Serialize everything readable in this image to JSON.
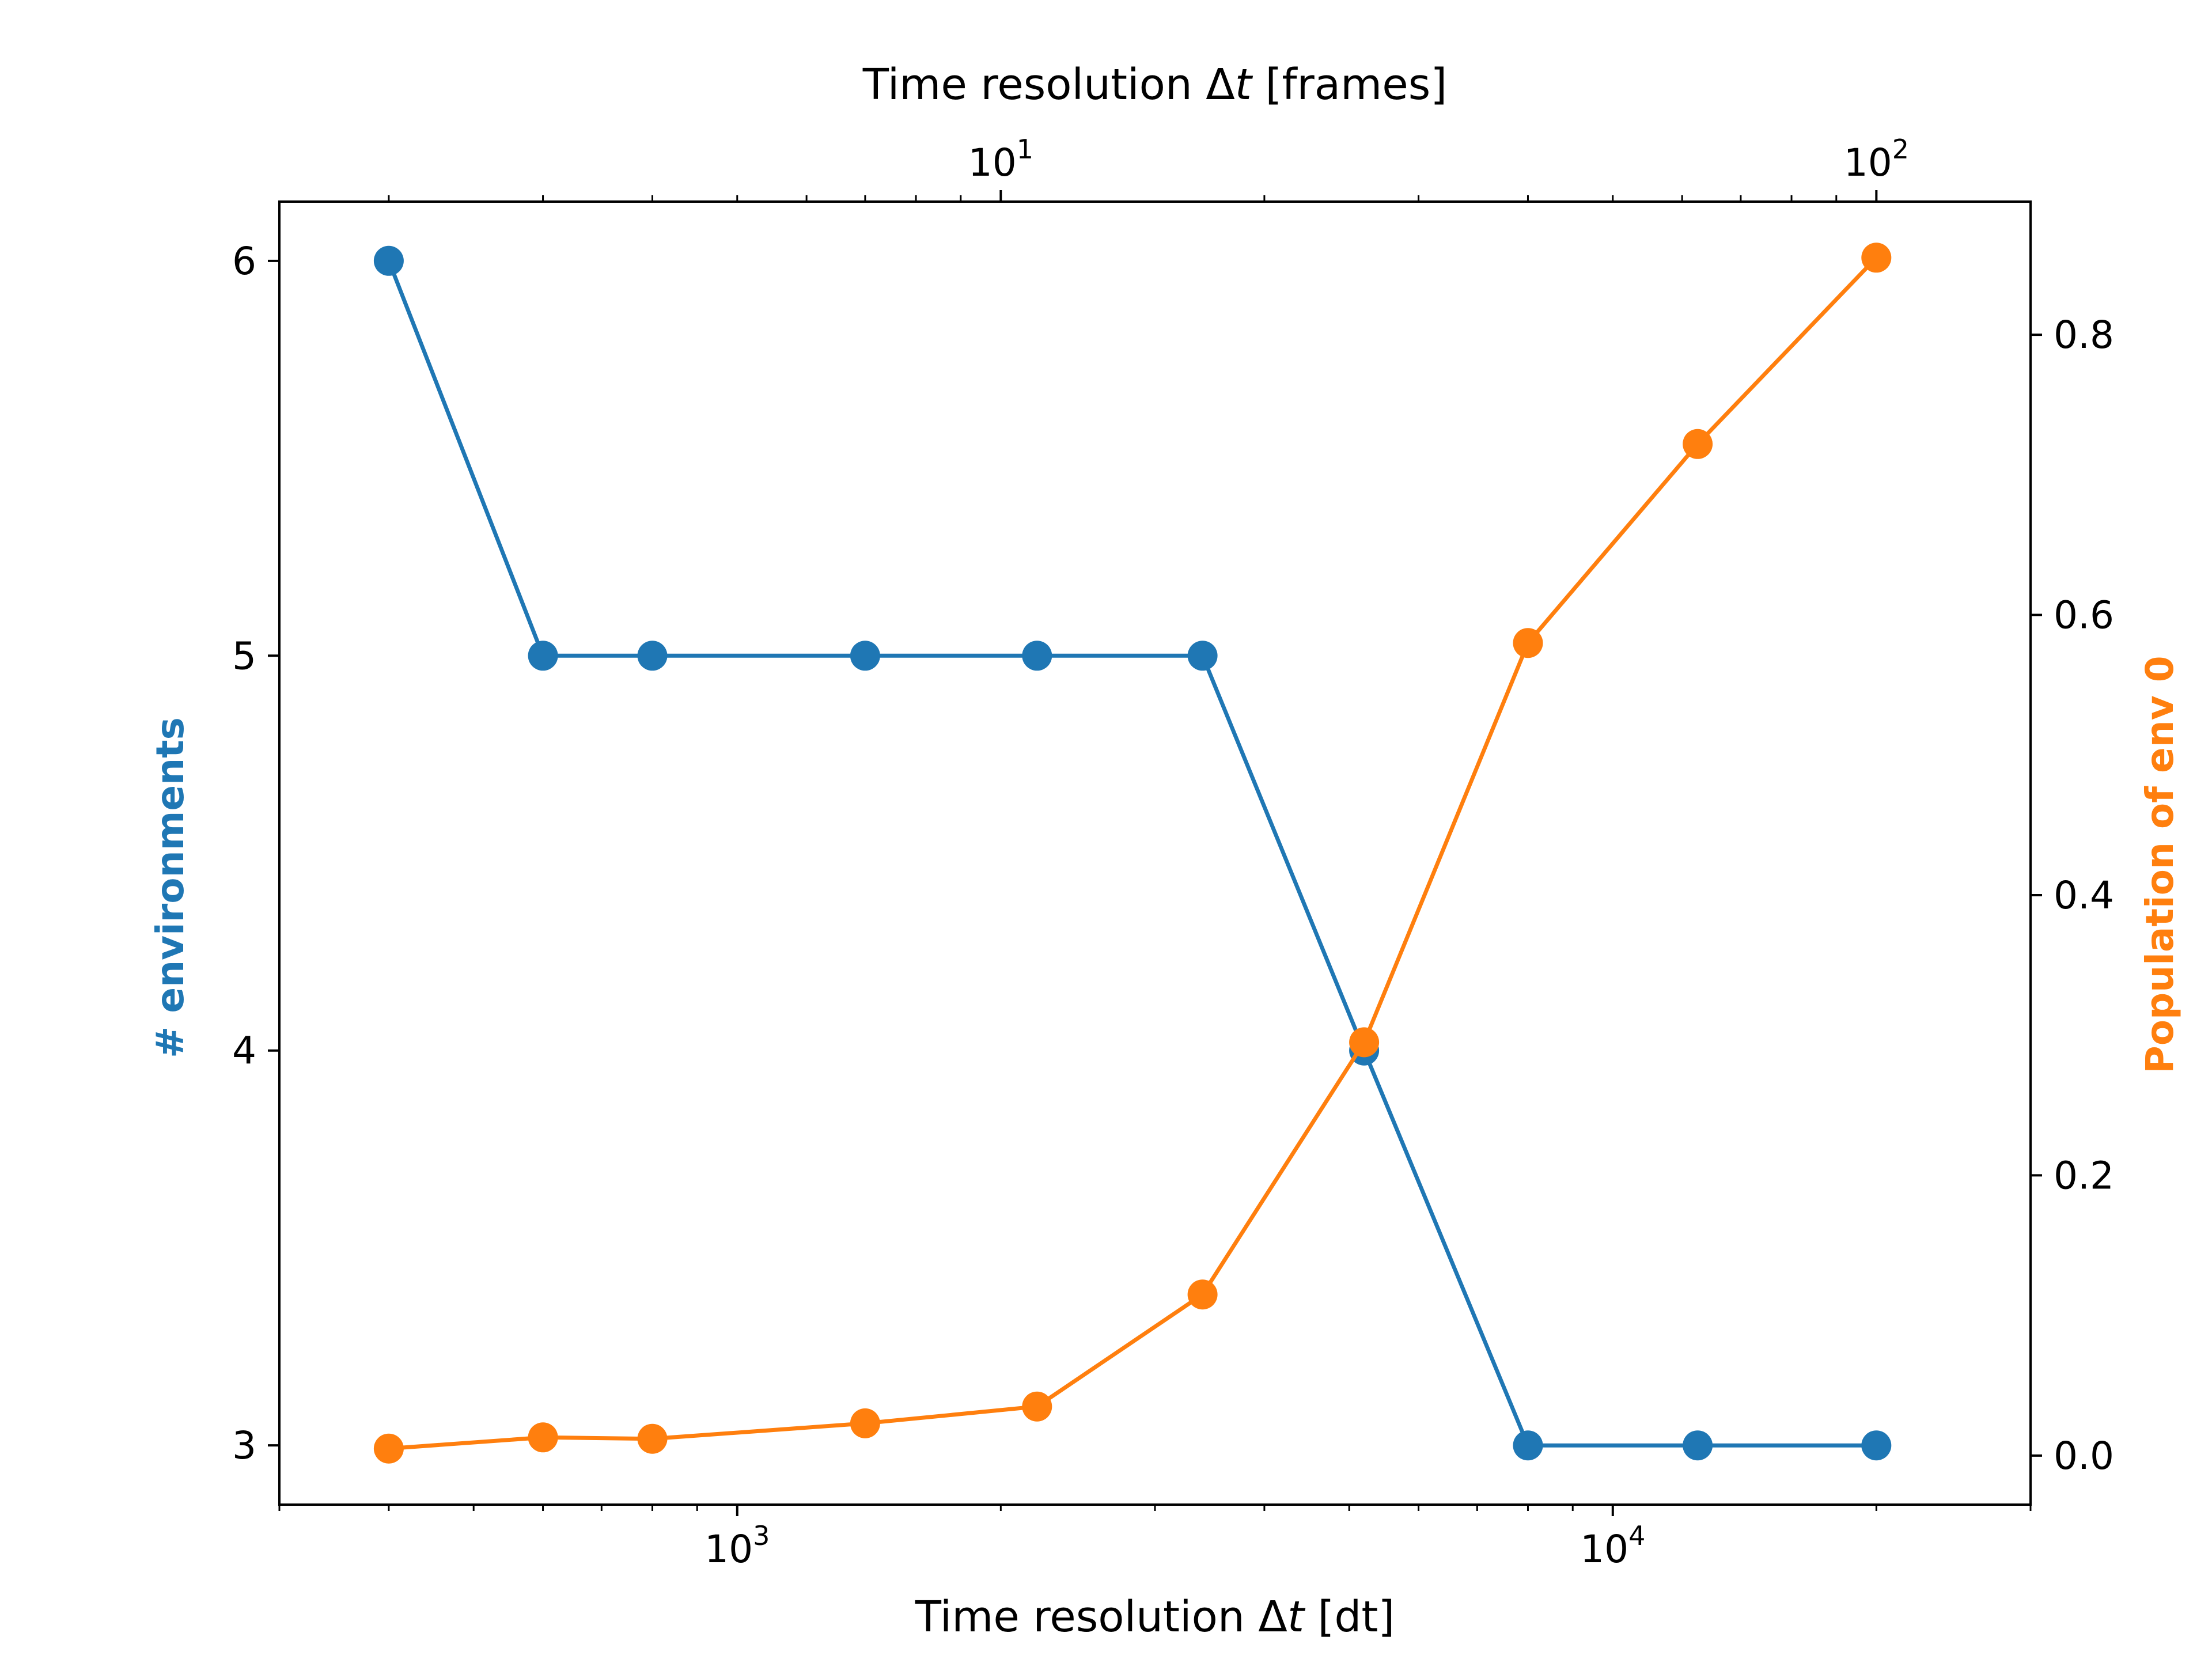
{
  "chart_data": {
    "type": "line",
    "x_scale": "log",
    "x": [
      400,
      600,
      800,
      1400,
      2200,
      3400,
      5200,
      8000,
      12500,
      20000
    ],
    "xlim": [
      300,
      30000
    ],
    "xlabel": "Time resolution Δt [dt]",
    "xlabel_parts": {
      "pre": "Time resolution Δ",
      "italic": "t",
      "post": " [dt]"
    },
    "xticks": [
      {
        "value": 1000,
        "base": "10",
        "exp": "3"
      },
      {
        "value": 10000,
        "base": "10",
        "exp": "4"
      }
    ],
    "top_axis": {
      "xlabel": "Time resolution Δt [frames]",
      "xlabel_parts": {
        "pre": "Time resolution Δ",
        "italic": "t",
        "post": " [frames]"
      },
      "scale": "log",
      "xticks": [
        {
          "value": 10,
          "base": "10",
          "exp": "1"
        },
        {
          "value": 100,
          "base": "10",
          "exp": "2"
        }
      ]
    },
    "left_axis": {
      "ylabel": "# environments",
      "color": "#1f77b4",
      "ylim": [
        2.85,
        6.15
      ],
      "yticks": [
        "3",
        "4",
        "5",
        "6"
      ]
    },
    "right_axis": {
      "ylabel": "Population of env 0",
      "color": "#ff7f0e",
      "ylim": [
        -0.035,
        0.895
      ],
      "yticks": [
        "0.0",
        "0.2",
        "0.4",
        "0.6",
        "0.8"
      ]
    },
    "series": [
      {
        "axis": "left",
        "color": "#1f77b4",
        "values": [
          6,
          5,
          5,
          5,
          5,
          5,
          4,
          3,
          3,
          3
        ]
      },
      {
        "axis": "right",
        "color": "#ff7f0e",
        "values": [
          0.005,
          0.013,
          0.012,
          0.023,
          0.035,
          0.115,
          0.295,
          0.58,
          0.722,
          0.855
        ]
      }
    ],
    "grid": false,
    "legend": "none"
  }
}
